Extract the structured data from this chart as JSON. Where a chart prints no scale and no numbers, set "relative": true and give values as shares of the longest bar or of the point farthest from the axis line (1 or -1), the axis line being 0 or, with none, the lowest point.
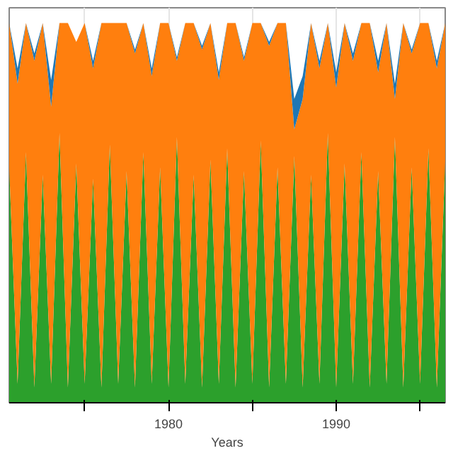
{
  "chart_data": {
    "type": "area",
    "relative": true,
    "stacked": true,
    "xlabel": "Years",
    "xlim": [
      1970.5,
      1996.5
    ],
    "xticks": [
      {
        "value": 1975,
        "label": null
      },
      1980,
      {
        "value": 1985,
        "label": null
      },
      1990,
      {
        "value": 1995,
        "label": null
      }
    ],
    "x": [
      1970.5,
      1971,
      1971.5,
      1972,
      1972.5,
      1973,
      1973.5,
      1974,
      1974.5,
      1975,
      1975.5,
      1976,
      1976.5,
      1977,
      1977.5,
      1978,
      1978.5,
      1979,
      1979.5,
      1980,
      1980.5,
      1981,
      1981.5,
      1982,
      1982.5,
      1983,
      1983.5,
      1984,
      1984.5,
      1985,
      1985.5,
      1986,
      1986.5,
      1987,
      1987.5,
      1988,
      1988.5,
      1989,
      1989.5,
      1990,
      1990.5,
      1991,
      1991.5,
      1992,
      1992.5,
      1993,
      1993.5,
      1994,
      1994.5,
      1995,
      1995.5,
      1996,
      1996.5
    ],
    "grid": "x",
    "series": [
      {
        "color": "#2ca02c",
        "values": [
          0.62,
          0.05,
          0.66,
          0.04,
          0.6,
          0.05,
          0.71,
          0.04,
          0.63,
          0.05,
          0.59,
          0.04,
          0.68,
          0.05,
          0.61,
          0.04,
          0.66,
          0.05,
          0.62,
          0.04,
          0.7,
          0.05,
          0.6,
          0.04,
          0.64,
          0.05,
          0.67,
          0.04,
          0.61,
          0.05,
          0.69,
          0.04,
          0.62,
          0.05,
          0.65,
          0.04,
          0.6,
          0.05,
          0.71,
          0.04,
          0.63,
          0.05,
          0.66,
          0.04,
          0.61,
          0.05,
          0.7,
          0.04,
          0.62,
          0.05,
          0.67,
          0.04,
          0.64
        ]
      },
      {
        "color": "#ff7f0e",
        "values": [
          0.38,
          0.79,
          0.34,
          0.86,
          0.4,
          0.73,
          0.29,
          0.96,
          0.32,
          0.95,
          0.29,
          0.96,
          0.32,
          0.95,
          0.39,
          0.88,
          0.34,
          0.81,
          0.38,
          0.96,
          0.2,
          0.95,
          0.4,
          0.89,
          0.36,
          0.8,
          0.33,
          0.96,
          0.29,
          0.95,
          0.31,
          0.9,
          0.38,
          0.95,
          0.07,
          0.76,
          0.4,
          0.83,
          0.29,
          0.79,
          0.37,
          0.85,
          0.34,
          0.96,
          0.26,
          0.95,
          0.1,
          0.96,
          0.3,
          0.95,
          0.33,
          0.84,
          0.36
        ]
      },
      {
        "color": "#1f77b4",
        "values": [
          0,
          0.04,
          0,
          0.02,
          0,
          0.07,
          0,
          0,
          0,
          0,
          0.02,
          0,
          0,
          0,
          0,
          0.01,
          0,
          0.02,
          0,
          0,
          0.01,
          0,
          0,
          0.01,
          0,
          0.02,
          0,
          0,
          0.01,
          0,
          0,
          0.01,
          0,
          0,
          0.08,
          0.06,
          0,
          0.02,
          0,
          0.04,
          0,
          0.02,
          0,
          0,
          0.03,
          0,
          0.04,
          0,
          0.01,
          0,
          0,
          0.02,
          0
        ]
      }
    ]
  }
}
